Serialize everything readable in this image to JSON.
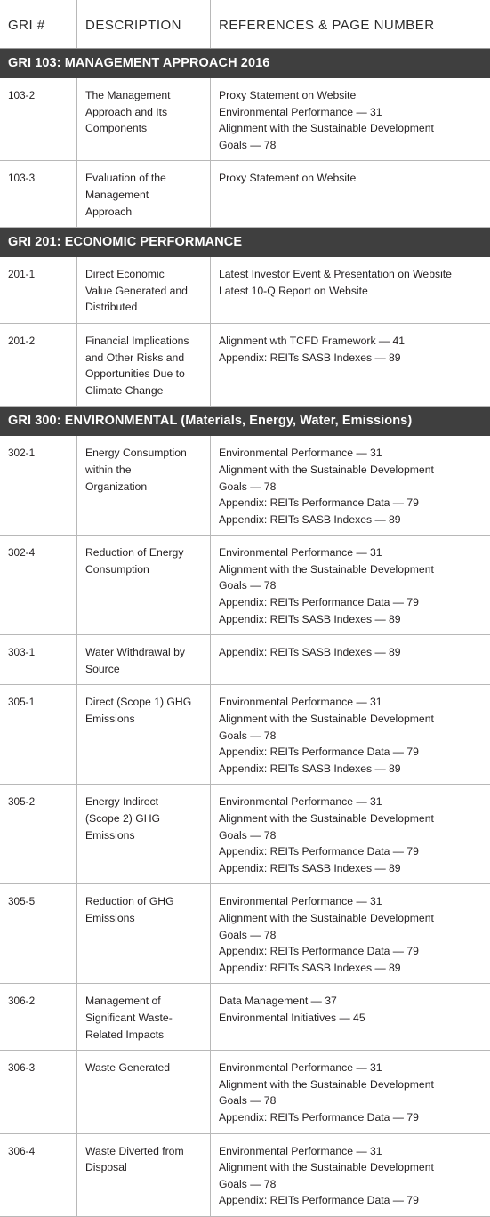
{
  "header": {
    "gri": "GRI #",
    "description": "DESCRIPTION",
    "references": "REFERENCES & PAGE NUMBER"
  },
  "sections": [
    {
      "title": "GRI 103: MANAGEMENT APPROACH 2016",
      "rows": [
        {
          "code": "103-2",
          "desc": [
            "The Management",
            "Approach and Its",
            "Components"
          ],
          "refs": [
            "Proxy Statement on Website",
            "Environmental Performance — 31",
            "Alignment with the Sustainable Development",
            "Goals — 78"
          ]
        },
        {
          "code": "103-3",
          "desc": [
            "Evaluation of the",
            "Management",
            "Approach"
          ],
          "refs": [
            "Proxy Statement on Website"
          ]
        }
      ]
    },
    {
      "title": "GRI 201: ECONOMIC PERFORMANCE",
      "rows": [
        {
          "code": "201-1",
          "desc": [
            "Direct Economic",
            "Value Generated and",
            "Distributed"
          ],
          "refs": [
            "Latest Investor Event & Presentation on Website",
            "Latest 10-Q Report on Website"
          ]
        },
        {
          "code": "201-2",
          "desc": [
            "Financial Implications",
            "and Other Risks and",
            "Opportunities Due to",
            "Climate Change"
          ],
          "refs": [
            "Alignment wth TCFD Framework — 41",
            "Appendix: REITs SASB Indexes — 89"
          ]
        }
      ]
    },
    {
      "title": "GRI 300: ENVIRONMENTAL (Materials, Energy, Water, Emissions)",
      "rows": [
        {
          "code": "302-1",
          "desc": [
            "Energy Consumption",
            "within the",
            "Organization"
          ],
          "refs": [
            "Environmental Performance — 31",
            "Alignment with the Sustainable Development",
            "Goals — 78",
            "Appendix: REITs Performance Data — 79",
            "Appendix: REITs SASB Indexes — 89"
          ]
        },
        {
          "code": "302-4",
          "desc": [
            "Reduction of Energy",
            "Consumption"
          ],
          "refs": [
            "Environmental Performance — 31",
            "Alignment with the Sustainable Development",
            "Goals — 78",
            "Appendix: REITs Performance Data — 79",
            "Appendix: REITs SASB Indexes — 89"
          ]
        },
        {
          "code": "303-1",
          "desc": [
            "Water Withdrawal by",
            "Source"
          ],
          "refs": [
            "Appendix: REITs SASB Indexes — 89"
          ]
        },
        {
          "code": "305-1",
          "desc": [
            "Direct (Scope 1) GHG",
            "Emissions"
          ],
          "refs": [
            "Environmental Performance — 31",
            "Alignment with the Sustainable Development",
            "Goals — 78",
            "Appendix: REITs Performance Data — 79",
            "Appendix: REITs SASB Indexes — 89"
          ]
        },
        {
          "code": "305-2",
          "desc": [
            "Energy Indirect",
            "(Scope 2) GHG",
            "Emissions"
          ],
          "refs": [
            "Environmental Performance — 31",
            "Alignment with the Sustainable Development",
            "Goals — 78",
            "Appendix: REITs Performance Data — 79",
            "Appendix: REITs SASB Indexes — 89"
          ]
        },
        {
          "code": "305-5",
          "desc": [
            "Reduction of GHG",
            "Emissions"
          ],
          "refs": [
            "Environmental Performance — 31",
            "Alignment with the Sustainable Development",
            "Goals — 78",
            "Appendix: REITs Performance Data — 79",
            "Appendix: REITs SASB Indexes — 89"
          ]
        },
        {
          "code": "306-2",
          "desc": [
            "Management of",
            "Significant Waste-",
            "Related Impacts"
          ],
          "refs": [
            "Data Management — 37",
            "Environmental Initiatives — 45"
          ]
        },
        {
          "code": "306-3",
          "desc": [
            "Waste Generated"
          ],
          "refs": [
            "Environmental Performance — 31",
            "Alignment with the Sustainable Development",
            "Goals — 78",
            "Appendix: REITs Performance Data — 79"
          ]
        },
        {
          "code": "306-4",
          "desc": [
            "Waste Diverted from",
            "Disposal"
          ],
          "refs": [
            "Environmental Performance — 31",
            "Alignment with the Sustainable Development",
            "Goals — 78",
            "Appendix: REITs Performance Data — 79"
          ]
        }
      ]
    }
  ]
}
